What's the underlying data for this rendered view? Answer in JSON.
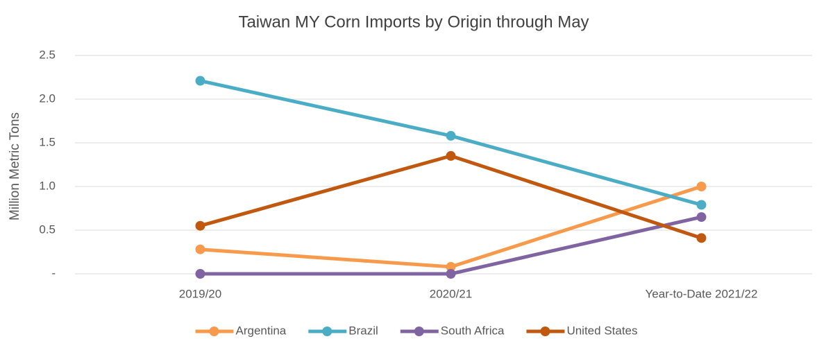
{
  "chart_data": {
    "type": "line",
    "title": "Taiwan MY Corn Imports by Origin through May",
    "y_label": "Million Metric Tons",
    "categories": [
      "2019/20",
      "2020/21",
      "Year-to-Date 2021/22"
    ],
    "series": [
      {
        "name": "Argentina",
        "color": "#f79a4c",
        "values": [
          0.28,
          0.08,
          1.0
        ]
      },
      {
        "name": "Brazil",
        "color": "#4bacc6",
        "values": [
          2.21,
          1.58,
          0.79
        ]
      },
      {
        "name": "South Africa",
        "color": "#8064a2",
        "values": [
          0,
          0,
          0.65
        ]
      },
      {
        "name": "United States",
        "color": "#c0580f",
        "values": [
          0.55,
          1.35,
          0.41
        ]
      }
    ],
    "ylim": [
      0,
      2.5
    ],
    "yticks": [
      {
        "value": 0,
        "label": "-"
      },
      0.5,
      {
        "value": 1,
        "label": "1.0"
      },
      1.5,
      {
        "value": 2,
        "label": "2.0"
      },
      2.5
    ],
    "grid": true,
    "legend": "bottom"
  }
}
